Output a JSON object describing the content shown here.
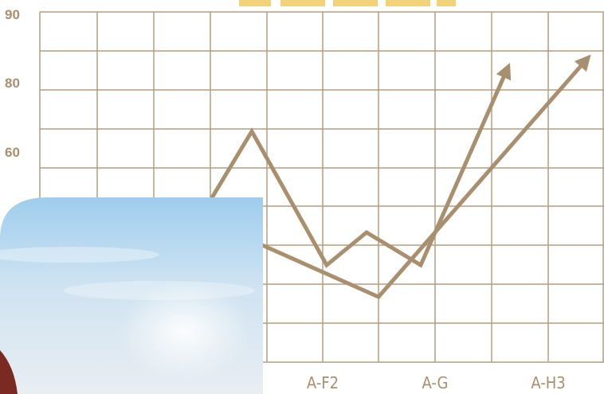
{
  "y_labels": [
    "90",
    "80",
    "60"
  ],
  "x_labels": [
    "A-F2",
    "A-G",
    "A-H3"
  ]
}
